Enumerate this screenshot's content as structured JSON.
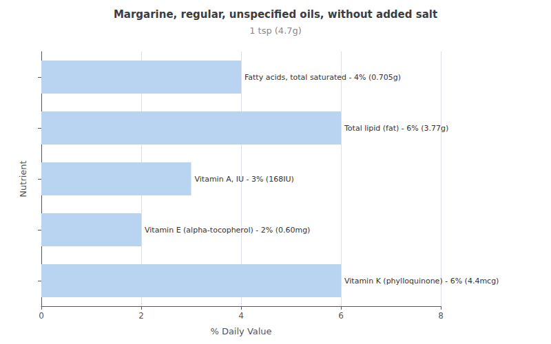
{
  "chart_data": {
    "type": "bar",
    "orientation": "horizontal",
    "title": "Margarine, regular, unspecified oils, without added salt",
    "subtitle": "1 tsp (4.7g)",
    "x_label": "% Daily Value",
    "y_label": "Nutrient",
    "categories": [
      null,
      null,
      null,
      null,
      null
    ],
    "values": [
      6,
      2,
      3,
      6,
      4
    ],
    "value_labels": [
      "Vitamin K (phylloquinone) - 6% (4.4mcg)",
      "Vitamin E (alpha-tocopherol) - 2% (0.60mg)",
      "Vitamin A, IU - 3% (168IU)",
      "Total lipid (fat) - 6% (3.77g)",
      "Fatty acids, total saturated - 4% (0.705g)"
    ],
    "data_labels": true,
    "color": "#b8d4f0",
    "xlim": [
      0,
      8
    ],
    "xticks": [
      0,
      2,
      4,
      6,
      8
    ],
    "grid": true,
    "tick_labels": "x"
  }
}
